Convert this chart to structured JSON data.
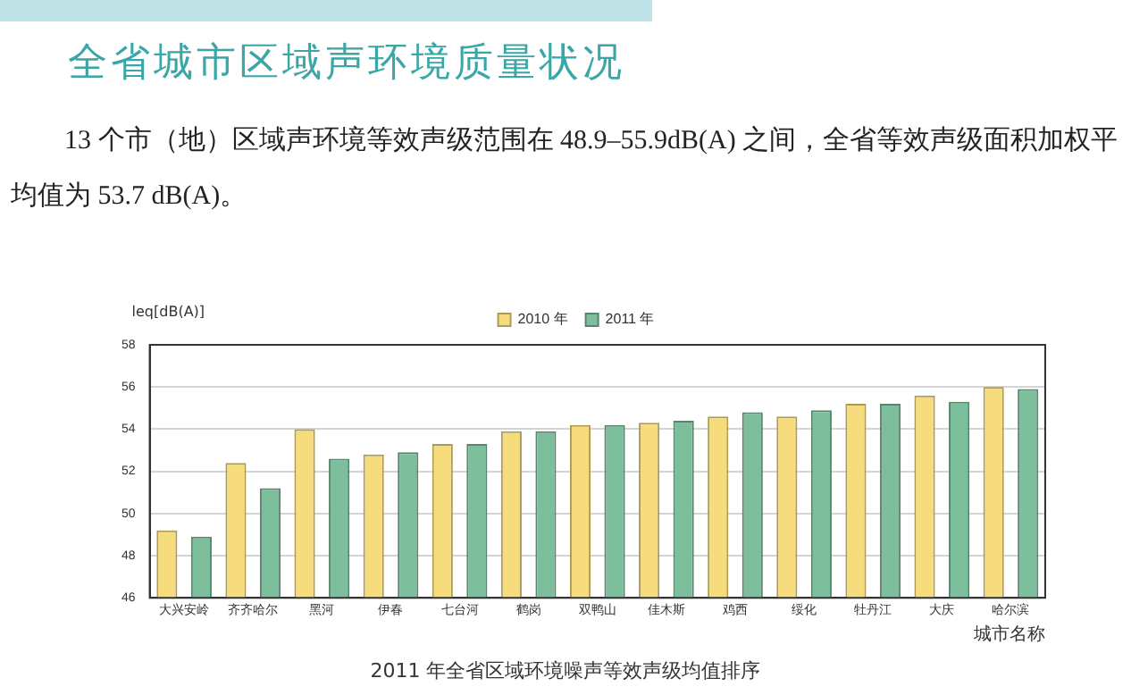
{
  "chart_data": {
    "type": "bar",
    "title": "全省城市区域声环境质量状况",
    "subtitle": "13 个市（地）区域声环境等效声级范围在 48.9–55.9dB(A) 之间，全省等效声级面积加权平均值为 53.7 dB(A)。",
    "ylabel": "leq[dB(A)]",
    "xlabel": "城市名称",
    "annotations": [
      "2011 年全省区域环境噪声等效声级均值排序"
    ],
    "categories": [
      "大兴安岭",
      "齐齐哈尔",
      "黑河",
      "伊春",
      "七台河",
      "鹤岗",
      "双鸭山",
      "佳木斯",
      "鸡西",
      "绥化",
      "牡丹江",
      "大庆",
      "哈尔滨"
    ],
    "series": [
      {
        "name": "2010 年",
        "color": "#f6dc7c",
        "values": [
          49.2,
          52.4,
          54.0,
          52.8,
          53.3,
          53.9,
          54.2,
          54.3,
          54.6,
          54.6,
          55.2,
          55.6,
          56.0
        ]
      },
      {
        "name": "2011 年",
        "color": "#7dbf9c",
        "values": [
          48.9,
          51.2,
          52.6,
          52.9,
          53.3,
          53.9,
          54.2,
          54.4,
          54.8,
          54.9,
          55.2,
          55.3,
          55.9
        ]
      }
    ],
    "ylim": [
      46,
      58
    ],
    "yticks": [
      46,
      48,
      50,
      52,
      54,
      56,
      58
    ],
    "grid": "y",
    "legend": "top"
  }
}
